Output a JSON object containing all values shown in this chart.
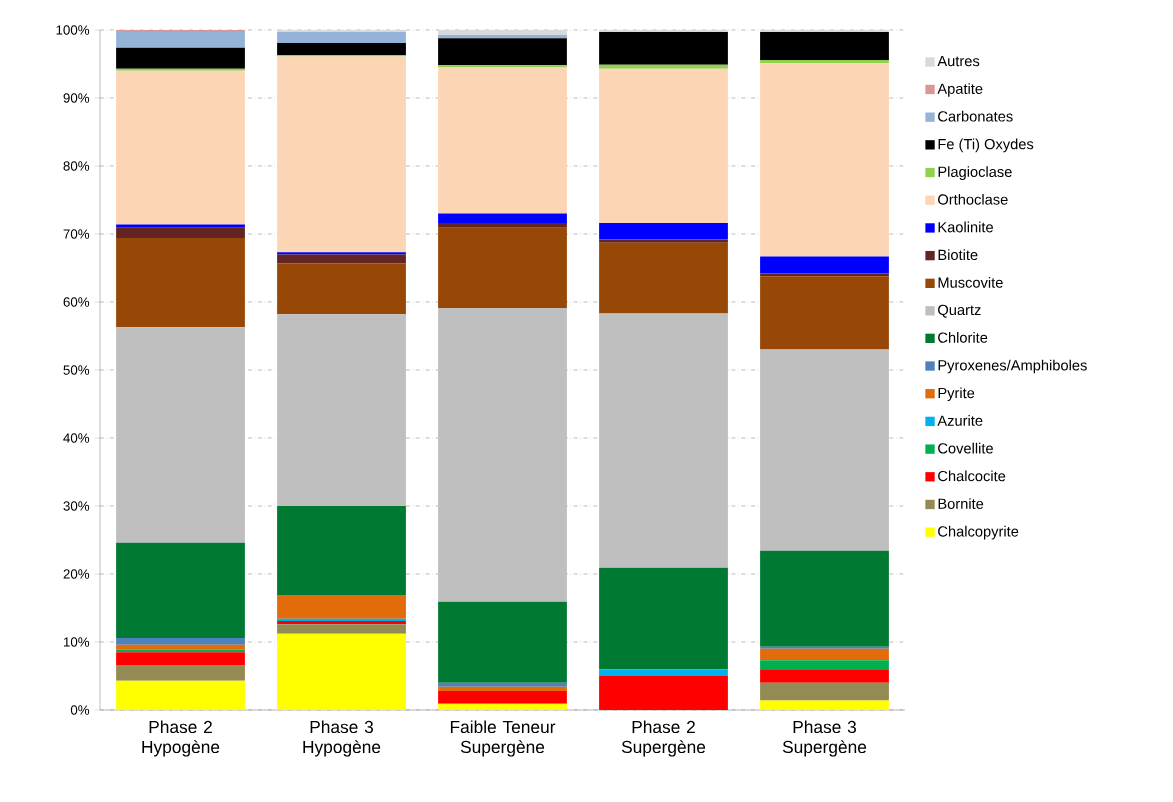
{
  "chart_data": {
    "type": "bar",
    "stacked": true,
    "categories": [
      "Phase 2 Hypogène",
      "Phase 3 Hypogène",
      "Faible Teneur Supergène",
      "Phase 2 Supergène",
      "Phase 3 Supergène"
    ],
    "series": [
      {
        "name": "Chalcopyrite",
        "color": "#ffff00",
        "values": [
          4.3,
          11.2,
          0.9,
          0,
          1.4
        ]
      },
      {
        "name": "Bornite",
        "color": "#948a54",
        "values": [
          2.3,
          1.4,
          0,
          0,
          2.6
        ]
      },
      {
        "name": "Chalcocite",
        "color": "#ff0000",
        "values": [
          1.9,
          0.5,
          1.9,
          5.0,
          2.0
        ]
      },
      {
        "name": "Covellite",
        "color": "#00b050",
        "values": [
          0.4,
          0,
          0,
          0,
          1.3
        ]
      },
      {
        "name": "Azurite",
        "color": "#00b0f0",
        "values": [
          0,
          0.3,
          0,
          1.0,
          0
        ]
      },
      {
        "name": "Pyrite",
        "color": "#e36c0a",
        "values": [
          0.7,
          3.5,
          0.6,
          0,
          1.7
        ]
      },
      {
        "name": "Pyroxenes/Amphiboles",
        "color": "#4f81bd",
        "values": [
          1.0,
          0,
          0.6,
          0,
          0.3
        ]
      },
      {
        "name": "Chlorite",
        "color": "#007a33",
        "values": [
          14.0,
          13.1,
          11.9,
          14.9,
          14.1
        ]
      },
      {
        "name": "Quartz",
        "color": "#bfbfbf",
        "values": [
          31.7,
          28.2,
          43.2,
          37.4,
          29.6
        ]
      },
      {
        "name": "Muscovite",
        "color": "#974706",
        "values": [
          13.1,
          7.5,
          11.8,
          10.4,
          10.8
        ]
      },
      {
        "name": "Biotite",
        "color": "#632523",
        "values": [
          1.5,
          1.3,
          0.7,
          0.5,
          0.4
        ]
      },
      {
        "name": "Kaolinite",
        "color": "#0000ff",
        "values": [
          0.5,
          0.3,
          1.4,
          2.4,
          2.5
        ]
      },
      {
        "name": "Orthoclase",
        "color": "#fcd5b5",
        "values": [
          22.6,
          28.8,
          21.5,
          22.7,
          28.4
        ]
      },
      {
        "name": "Plagioclase",
        "color": "#92d050",
        "values": [
          0.3,
          0.2,
          0.3,
          0.6,
          0.5
        ]
      },
      {
        "name": "Fe (Ti) Oxydes",
        "color": "#000000",
        "values": [
          3.1,
          1.8,
          4.0,
          4.8,
          4.1
        ]
      },
      {
        "name": "Carbonates",
        "color": "#95b3d7",
        "values": [
          2.3,
          1.6,
          0.5,
          0,
          0
        ]
      },
      {
        "name": "Apatite",
        "color": "#d99694",
        "values": [
          0.3,
          0,
          0,
          0,
          0
        ]
      },
      {
        "name": "Autres",
        "color": "#d9d9d9",
        "values": [
          0,
          0.3,
          0.7,
          0.3,
          0.3
        ]
      }
    ],
    "ylim": [
      0,
      100
    ],
    "yticks": [
      {
        "value": 0,
        "label": "0%"
      },
      {
        "value": 10,
        "label": "10%"
      },
      {
        "value": 20,
        "label": "20%"
      },
      {
        "value": 30,
        "label": "30%"
      },
      {
        "value": 40,
        "label": "40%"
      },
      {
        "value": 50,
        "label": "50%"
      },
      {
        "value": 60,
        "label": "60%"
      },
      {
        "value": 70,
        "label": "70%"
      },
      {
        "value": 80,
        "label": "80%"
      },
      {
        "value": 90,
        "label": "90%"
      },
      {
        "value": 100,
        "label": "100%"
      }
    ],
    "grid": "y",
    "legend": "right"
  }
}
